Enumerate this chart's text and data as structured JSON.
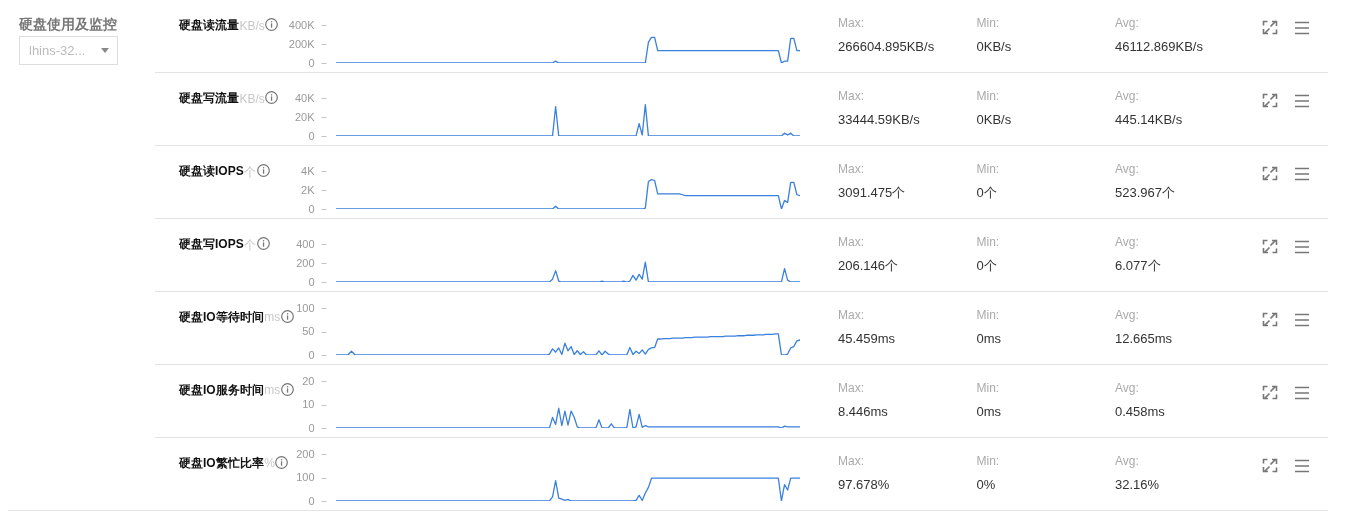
{
  "chart_data": [
    {
      "type": "other",
      "title": "硬盘使用及监控",
      "annotations": [
        "lhins-32..."
      ]
    },
    {
      "type": "line",
      "title": "硬盘读流量",
      "ylabel": "KB/s",
      "tick_labels": "y",
      "ylim": [
        0,
        400000
      ],
      "yticks": [
        0,
        {
          "value": 200000,
          "label": "200K"
        },
        {
          "value": 400000,
          "label": "400K"
        }
      ],
      "categories": [
        null,
        null,
        null,
        null,
        null,
        null,
        null,
        null,
        null,
        null,
        null,
        null,
        null,
        null,
        null,
        null,
        null,
        null,
        null,
        null,
        null,
        null,
        null,
        null,
        null,
        null,
        null,
        null,
        null,
        null,
        null,
        null,
        null,
        null,
        null,
        null,
        null,
        null,
        null,
        null,
        null,
        null,
        null,
        null,
        null,
        null,
        null,
        null,
        null,
        null,
        null,
        null,
        null,
        null,
        null,
        null,
        null,
        null,
        null,
        null,
        null,
        null,
        null,
        null,
        null,
        null,
        null,
        null,
        null,
        null,
        null,
        null,
        null,
        null,
        null,
        null,
        null,
        null,
        null,
        null,
        null,
        null,
        null,
        null,
        null,
        null,
        null,
        null,
        null,
        null,
        null,
        null,
        null,
        null,
        null,
        null,
        null,
        null,
        null,
        null,
        null,
        null,
        null,
        null,
        null,
        null,
        null,
        null,
        null,
        null,
        null,
        null,
        null,
        null,
        null,
        null,
        null,
        null,
        null,
        null,
        null,
        null,
        null,
        null,
        null,
        null,
        null,
        null,
        null,
        null,
        null,
        null,
        null,
        null,
        null,
        null,
        null,
        null,
        null,
        null,
        null,
        null,
        null,
        null,
        null,
        null,
        null,
        null,
        null,
        null,
        null
      ],
      "series": [
        {
          "color": "#3a80dd",
          "values": [
            0,
            0,
            0,
            0,
            0,
            0,
            0,
            0,
            0,
            0,
            0,
            0,
            0,
            0,
            0,
            0,
            0,
            0,
            0,
            0,
            0,
            0,
            0,
            0,
            0,
            0,
            0,
            0,
            0,
            0,
            0,
            0,
            0,
            0,
            0,
            0,
            0,
            0,
            0,
            0,
            0,
            0,
            0,
            0,
            0,
            0,
            0,
            0,
            0,
            0,
            0,
            0,
            0,
            0,
            0,
            0,
            0,
            0,
            0,
            0,
            0,
            0,
            0,
            0,
            0,
            0,
            0,
            0,
            0,
            0,
            0,
            20000,
            0,
            0,
            0,
            0,
            0,
            0,
            0,
            0,
            0,
            0,
            0,
            0,
            0,
            0,
            0,
            0,
            0,
            0,
            0,
            0,
            0,
            0,
            0,
            0,
            0,
            0,
            0,
            0,
            0,
            220000,
            270000,
            270000,
            130000,
            130000,
            130000,
            130000,
            130000,
            130000,
            130000,
            130000,
            130000,
            130000,
            130000,
            130000,
            130000,
            130000,
            130000,
            130000,
            130000,
            130000,
            130000,
            130000,
            130000,
            130000,
            130000,
            130000,
            130000,
            130000,
            130000,
            130000,
            130000,
            130000,
            130000,
            130000,
            130000,
            130000,
            130000,
            130000,
            130000,
            130000,
            130000,
            130000,
            0,
            20000,
            20000,
            260000,
            260000,
            130000,
            130000
          ]
        }
      ],
      "annotations": [
        "Max:",
        "266604.895KB/s",
        "Min:",
        "0KB/s",
        "Avg:",
        "46112.869KB/s"
      ]
    },
    {
      "type": "line",
      "title": "硬盘写流量",
      "ylabel": "KB/s",
      "tick_labels": "y",
      "ylim": [
        0,
        40000
      ],
      "yticks": [
        0,
        {
          "value": 20000,
          "label": "20K"
        },
        {
          "value": 40000,
          "label": "40K"
        }
      ],
      "categories": [
        null,
        null,
        null,
        null,
        null,
        null,
        null,
        null,
        null,
        null,
        null,
        null,
        null,
        null,
        null,
        null,
        null,
        null,
        null,
        null,
        null,
        null,
        null,
        null,
        null,
        null,
        null,
        null,
        null,
        null,
        null,
        null,
        null,
        null,
        null,
        null,
        null,
        null,
        null,
        null,
        null,
        null,
        null,
        null,
        null,
        null,
        null,
        null,
        null,
        null,
        null,
        null,
        null,
        null,
        null,
        null,
        null,
        null,
        null,
        null,
        null,
        null,
        null,
        null,
        null,
        null,
        null,
        null,
        null,
        null,
        null,
        null,
        null,
        null,
        null,
        null,
        null,
        null,
        null,
        null,
        null,
        null,
        null,
        null,
        null,
        null,
        null,
        null,
        null,
        null,
        null,
        null,
        null,
        null,
        null,
        null,
        null,
        null,
        null,
        null,
        null,
        null,
        null,
        null,
        null,
        null,
        null,
        null,
        null,
        null,
        null,
        null,
        null,
        null,
        null,
        null,
        null,
        null,
        null,
        null,
        null,
        null,
        null,
        null,
        null,
        null,
        null,
        null,
        null,
        null,
        null,
        null,
        null,
        null,
        null,
        null,
        null,
        null,
        null,
        null,
        null,
        null,
        null,
        null,
        null,
        null,
        null,
        null,
        null,
        null,
        null
      ],
      "series": [
        {
          "color": "#3a80dd",
          "values": [
            0,
            0,
            0,
            0,
            0,
            0,
            0,
            0,
            0,
            0,
            0,
            0,
            0,
            0,
            0,
            0,
            0,
            0,
            0,
            0,
            0,
            0,
            0,
            0,
            0,
            0,
            0,
            0,
            0,
            0,
            0,
            0,
            0,
            0,
            0,
            0,
            0,
            0,
            0,
            0,
            0,
            0,
            0,
            0,
            0,
            0,
            0,
            0,
            0,
            0,
            0,
            0,
            0,
            0,
            0,
            0,
            0,
            0,
            0,
            0,
            0,
            0,
            0,
            0,
            0,
            0,
            0,
            0,
            0,
            0,
            0,
            31000,
            0,
            0,
            0,
            0,
            0,
            0,
            0,
            0,
            0,
            0,
            0,
            0,
            0,
            0,
            0,
            0,
            0,
            0,
            0,
            0,
            0,
            0,
            0,
            0,
            0,
            0,
            13000,
            1000,
            33000,
            0,
            0,
            0,
            0,
            0,
            0,
            0,
            0,
            0,
            0,
            0,
            0,
            0,
            0,
            0,
            0,
            0,
            0,
            0,
            0,
            0,
            0,
            0,
            0,
            0,
            0,
            0,
            0,
            0,
            0,
            0,
            0,
            0,
            0,
            0,
            0,
            0,
            0,
            0,
            0,
            0,
            0,
            0,
            0,
            3000,
            1000,
            3000,
            0,
            0,
            0
          ]
        }
      ],
      "annotations": [
        "Max:",
        "33444.59KB/s",
        "Min:",
        "0KB/s",
        "Avg:",
        "445.14KB/s"
      ]
    },
    {
      "type": "line",
      "title": "硬盘读IOPS",
      "ylabel": "个",
      "tick_labels": "y",
      "ylim": [
        0,
        4000
      ],
      "yticks": [
        0,
        {
          "value": 2000,
          "label": "2K"
        },
        {
          "value": 4000,
          "label": "4K"
        }
      ],
      "categories": [
        null,
        null,
        null,
        null,
        null,
        null,
        null,
        null,
        null,
        null,
        null,
        null,
        null,
        null,
        null,
        null,
        null,
        null,
        null,
        null,
        null,
        null,
        null,
        null,
        null,
        null,
        null,
        null,
        null,
        null,
        null,
        null,
        null,
        null,
        null,
        null,
        null,
        null,
        null,
        null,
        null,
        null,
        null,
        null,
        null,
        null,
        null,
        null,
        null,
        null,
        null,
        null,
        null,
        null,
        null,
        null,
        null,
        null,
        null,
        null,
        null,
        null,
        null,
        null,
        null,
        null,
        null,
        null,
        null,
        null,
        null,
        null,
        null,
        null,
        null,
        null,
        null,
        null,
        null,
        null,
        null,
        null,
        null,
        null,
        null,
        null,
        null,
        null,
        null,
        null,
        null,
        null,
        null,
        null,
        null,
        null,
        null,
        null,
        null,
        null,
        null,
        null,
        null,
        null,
        null,
        null,
        null,
        null,
        null,
        null,
        null,
        null,
        null,
        null,
        null,
        null,
        null,
        null,
        null,
        null,
        null,
        null,
        null,
        null,
        null,
        null,
        null,
        null,
        null,
        null,
        null,
        null,
        null,
        null,
        null,
        null,
        null,
        null,
        null,
        null,
        null,
        null,
        null,
        null,
        null,
        null,
        null,
        null,
        null,
        null,
        null
      ],
      "series": [
        {
          "color": "#3a80dd",
          "values": [
            0,
            0,
            0,
            0,
            0,
            0,
            0,
            0,
            0,
            0,
            0,
            0,
            0,
            0,
            0,
            0,
            0,
            0,
            0,
            0,
            0,
            0,
            0,
            0,
            0,
            0,
            0,
            0,
            0,
            0,
            0,
            0,
            0,
            0,
            0,
            0,
            0,
            0,
            0,
            0,
            0,
            0,
            0,
            0,
            0,
            0,
            0,
            0,
            0,
            0,
            0,
            0,
            0,
            0,
            0,
            0,
            0,
            0,
            0,
            0,
            0,
            0,
            0,
            0,
            0,
            0,
            0,
            0,
            0,
            0,
            0,
            300,
            0,
            0,
            0,
            0,
            0,
            0,
            0,
            0,
            0,
            0,
            0,
            0,
            0,
            0,
            0,
            0,
            0,
            0,
            0,
            0,
            0,
            0,
            0,
            0,
            0,
            0,
            0,
            0,
            100,
            2900,
            3100,
            3000,
            1600,
            1600,
            1600,
            1600,
            1600,
            1600,
            1600,
            1600,
            1500,
            1400,
            1400,
            1400,
            1400,
            1400,
            1400,
            1400,
            1400,
            1400,
            1400,
            1400,
            1400,
            1400,
            1400,
            1400,
            1400,
            1400,
            1400,
            1400,
            1400,
            1400,
            1400,
            1400,
            1400,
            1400,
            1400,
            1400,
            1400,
            1400,
            1400,
            1400,
            0,
            900,
            700,
            2800,
            2800,
            1500,
            1400
          ]
        }
      ],
      "annotations": [
        "Max:",
        "3091.475个",
        "Min:",
        "0个",
        "Avg:",
        "523.967个"
      ]
    },
    {
      "type": "line",
      "title": "硬盘写IOPS",
      "ylabel": "个",
      "tick_labels": "y",
      "ylim": [
        0,
        400
      ],
      "yticks": [
        0,
        200,
        400
      ],
      "categories": [
        null,
        null,
        null,
        null,
        null,
        null,
        null,
        null,
        null,
        null,
        null,
        null,
        null,
        null,
        null,
        null,
        null,
        null,
        null,
        null,
        null,
        null,
        null,
        null,
        null,
        null,
        null,
        null,
        null,
        null,
        null,
        null,
        null,
        null,
        null,
        null,
        null,
        null,
        null,
        null,
        null,
        null,
        null,
        null,
        null,
        null,
        null,
        null,
        null,
        null,
        null,
        null,
        null,
        null,
        null,
        null,
        null,
        null,
        null,
        null,
        null,
        null,
        null,
        null,
        null,
        null,
        null,
        null,
        null,
        null,
        null,
        null,
        null,
        null,
        null,
        null,
        null,
        null,
        null,
        null,
        null,
        null,
        null,
        null,
        null,
        null,
        null,
        null,
        null,
        null,
        null,
        null,
        null,
        null,
        null,
        null,
        null,
        null,
        null,
        null,
        null,
        null,
        null,
        null,
        null,
        null,
        null,
        null,
        null,
        null,
        null,
        null,
        null,
        null,
        null,
        null,
        null,
        null,
        null,
        null,
        null,
        null,
        null,
        null,
        null,
        null,
        null,
        null,
        null,
        null,
        null,
        null,
        null,
        null,
        null,
        null,
        null,
        null,
        null,
        null,
        null,
        null,
        null,
        null,
        null,
        null,
        null,
        null,
        null,
        null,
        null
      ],
      "series": [
        {
          "color": "#3a80dd",
          "values": [
            0,
            0,
            0,
            0,
            0,
            0,
            0,
            0,
            0,
            0,
            0,
            0,
            0,
            0,
            0,
            0,
            0,
            0,
            0,
            0,
            0,
            0,
            0,
            0,
            0,
            0,
            0,
            0,
            0,
            0,
            0,
            0,
            0,
            0,
            0,
            0,
            0,
            0,
            0,
            0,
            0,
            0,
            0,
            0,
            0,
            0,
            0,
            0,
            0,
            0,
            0,
            0,
            0,
            0,
            0,
            0,
            0,
            0,
            0,
            0,
            0,
            0,
            0,
            0,
            0,
            0,
            0,
            0,
            0,
            0,
            30,
            120,
            10,
            0,
            0,
            0,
            0,
            0,
            0,
            0,
            0,
            0,
            0,
            0,
            0,
            0,
            10,
            0,
            0,
            0,
            0,
            0,
            0,
            10,
            0,
            10,
            70,
            20,
            80,
            30,
            210,
            0,
            0,
            0,
            0,
            0,
            0,
            0,
            0,
            0,
            0,
            0,
            0,
            0,
            0,
            0,
            0,
            0,
            0,
            0,
            0,
            0,
            0,
            0,
            0,
            0,
            0,
            0,
            0,
            0,
            0,
            0,
            0,
            0,
            0,
            0,
            0,
            0,
            0,
            0,
            0,
            0,
            0,
            0,
            0,
            140,
            20,
            0,
            0,
            0,
            0
          ]
        }
      ],
      "annotations": [
        "Max:",
        "206.146个",
        "Min:",
        "0个",
        "Avg:",
        "6.077个"
      ]
    },
    {
      "type": "line",
      "title": "硬盘IO等待时间",
      "ylabel": "ms",
      "tick_labels": "y",
      "ylim": [
        0,
        100
      ],
      "yticks": [
        0,
        50,
        100
      ],
      "categories": [
        null,
        null,
        null,
        null,
        null,
        null,
        null,
        null,
        null,
        null,
        null,
        null,
        null,
        null,
        null,
        null,
        null,
        null,
        null,
        null,
        null,
        null,
        null,
        null,
        null,
        null,
        null,
        null,
        null,
        null,
        null,
        null,
        null,
        null,
        null,
        null,
        null,
        null,
        null,
        null,
        null,
        null,
        null,
        null,
        null,
        null,
        null,
        null,
        null,
        null,
        null,
        null,
        null,
        null,
        null,
        null,
        null,
        null,
        null,
        null,
        null,
        null,
        null,
        null,
        null,
        null,
        null,
        null,
        null,
        null,
        null,
        null,
        null,
        null,
        null,
        null,
        null,
        null,
        null,
        null,
        null,
        null,
        null,
        null,
        null,
        null,
        null,
        null,
        null,
        null,
        null,
        null,
        null,
        null,
        null,
        null,
        null,
        null,
        null,
        null,
        null,
        null,
        null,
        null,
        null,
        null,
        null,
        null,
        null,
        null,
        null,
        null,
        null,
        null,
        null,
        null,
        null,
        null,
        null,
        null,
        null,
        null,
        null,
        null,
        null,
        null,
        null,
        null,
        null,
        null,
        null,
        null,
        null,
        null,
        null,
        null,
        null,
        null,
        null,
        null,
        null,
        null,
        null,
        null,
        null,
        null,
        null,
        null,
        null,
        null,
        null
      ],
      "series": [
        {
          "color": "#3a80dd",
          "values": [
            0,
            0,
            0,
            0,
            1,
            8,
            1,
            0,
            0,
            0,
            0,
            0,
            0,
            0,
            0,
            0,
            0,
            0,
            0,
            0,
            0,
            0,
            0,
            0,
            0,
            0,
            0,
            0,
            0,
            0,
            0,
            0,
            0,
            0,
            0,
            0,
            0,
            0,
            0,
            0,
            0,
            0,
            0,
            0,
            0,
            0,
            0,
            0,
            0,
            0,
            0,
            0,
            0,
            0,
            0,
            0,
            0,
            0,
            0,
            0,
            0,
            0,
            0,
            0,
            0,
            0,
            0,
            0,
            0,
            2,
            13,
            6,
            15,
            1,
            25,
            9,
            18,
            1,
            9,
            1,
            7,
            0,
            0,
            0,
            0,
            9,
            0,
            8,
            2,
            0,
            0,
            0,
            0,
            0,
            0,
            16,
            1,
            8,
            3,
            11,
            2,
            12,
            15,
            16,
            34,
            34,
            35,
            35,
            35,
            36,
            36,
            36,
            36,
            37,
            37,
            37,
            38,
            38,
            38,
            38,
            38,
            39,
            39,
            39,
            39,
            39,
            40,
            40,
            40,
            40,
            41,
            41,
            41,
            42,
            42,
            42,
            43,
            43,
            43,
            44,
            44,
            44,
            45,
            45,
            0,
            0,
            2,
            15,
            18,
            30,
            32
          ]
        }
      ],
      "annotations": [
        "Max:",
        "45.459ms",
        "Min:",
        "0ms",
        "Avg:",
        "12.665ms"
      ]
    },
    {
      "type": "line",
      "title": "硬盘IO服务时间",
      "ylabel": "ms",
      "tick_labels": "y",
      "ylim": [
        0,
        20
      ],
      "yticks": [
        0,
        10,
        20
      ],
      "categories": [
        null,
        null,
        null,
        null,
        null,
        null,
        null,
        null,
        null,
        null,
        null,
        null,
        null,
        null,
        null,
        null,
        null,
        null,
        null,
        null,
        null,
        null,
        null,
        null,
        null,
        null,
        null,
        null,
        null,
        null,
        null,
        null,
        null,
        null,
        null,
        null,
        null,
        null,
        null,
        null,
        null,
        null,
        null,
        null,
        null,
        null,
        null,
        null,
        null,
        null,
        null,
        null,
        null,
        null,
        null,
        null,
        null,
        null,
        null,
        null,
        null,
        null,
        null,
        null,
        null,
        null,
        null,
        null,
        null,
        null,
        null,
        null,
        null,
        null,
        null,
        null,
        null,
        null,
        null,
        null,
        null,
        null,
        null,
        null,
        null,
        null,
        null,
        null,
        null,
        null,
        null,
        null,
        null,
        null,
        null,
        null,
        null,
        null,
        null,
        null,
        null,
        null,
        null,
        null,
        null,
        null,
        null,
        null,
        null,
        null,
        null,
        null,
        null,
        null,
        null,
        null,
        null,
        null,
        null,
        null,
        null,
        null,
        null,
        null,
        null,
        null,
        null,
        null,
        null,
        null,
        null,
        null,
        null,
        null,
        null,
        null,
        null,
        null,
        null,
        null,
        null,
        null,
        null,
        null,
        null,
        null,
        null,
        null,
        null,
        null,
        null
      ],
      "series": [
        {
          "color": "#3a80dd",
          "values": [
            0,
            0,
            0,
            0,
            0,
            0,
            0,
            0,
            0,
            0,
            0,
            0,
            0,
            0,
            0,
            0,
            0,
            0,
            0,
            0,
            0,
            0,
            0,
            0,
            0,
            0,
            0,
            0,
            0,
            0,
            0,
            0,
            0,
            0,
            0,
            0,
            0,
            0,
            0,
            0,
            0,
            0,
            0,
            0,
            0,
            0,
            0,
            0,
            0,
            0,
            0,
            0,
            0,
            0,
            0,
            0,
            0,
            0,
            0,
            0,
            0,
            0,
            0,
            0,
            0,
            0,
            0,
            0,
            0,
            0,
            4.5,
            1.5,
            8.4,
            1,
            7.2,
            1.2,
            7.2,
            4.6,
            0.5,
            0,
            0,
            0,
            0,
            0,
            0,
            3.5,
            0,
            0,
            0,
            1.8,
            0,
            0,
            0,
            0,
            0,
            7.9,
            0,
            0.5,
            5.8,
            0.3,
            1,
            0.5,
            0.5,
            0.5,
            0.5,
            0.5,
            0.5,
            0.5,
            0.5,
            0.5,
            0.5,
            0.5,
            0.5,
            0.5,
            0.5,
            0.5,
            0.5,
            0.5,
            0.5,
            0.5,
            0.5,
            0.5,
            0.5,
            0.5,
            0.5,
            0.5,
            0.5,
            0.5,
            0.5,
            0.5,
            0.5,
            0.5,
            0.5,
            0.5,
            0.5,
            0.5,
            0.5,
            0.5,
            0.5,
            0.5,
            0.5,
            0.5,
            0.5,
            0.5,
            0,
            0.8,
            0.5,
            0.5,
            0.5,
            0.5,
            0.5
          ]
        }
      ],
      "annotations": [
        "Max:",
        "8.446ms",
        "Min:",
        "0ms",
        "Avg:",
        "0.458ms"
      ]
    },
    {
      "type": "line",
      "title": "硬盘IO繁忙比率",
      "ylabel": "%",
      "tick_labels": "y",
      "ylim": [
        0,
        200
      ],
      "yticks": [
        0,
        100,
        200
      ],
      "categories": [
        null,
        null,
        null,
        null,
        null,
        null,
        null,
        null,
        null,
        null,
        null,
        null,
        null,
        null,
        null,
        null,
        null,
        null,
        null,
        null,
        null,
        null,
        null,
        null,
        null,
        null,
        null,
        null,
        null,
        null,
        null,
        null,
        null,
        null,
        null,
        null,
        null,
        null,
        null,
        null,
        null,
        null,
        null,
        null,
        null,
        null,
        null,
        null,
        null,
        null,
        null,
        null,
        null,
        null,
        null,
        null,
        null,
        null,
        null,
        null,
        null,
        null,
        null,
        null,
        null,
        null,
        null,
        null,
        null,
        null,
        null,
        null,
        null,
        null,
        null,
        null,
        null,
        null,
        null,
        null,
        null,
        null,
        null,
        null,
        null,
        null,
        null,
        null,
        null,
        null,
        null,
        null,
        null,
        null,
        null,
        null,
        null,
        null,
        null,
        null,
        null,
        null,
        null,
        null,
        null,
        null,
        null,
        null,
        null,
        null,
        null,
        null,
        null,
        null,
        null,
        null,
        null,
        null,
        null,
        null,
        null,
        null,
        null,
        null,
        null,
        null,
        null,
        null,
        null,
        null,
        null,
        null,
        null,
        null,
        null,
        null,
        null,
        null,
        null,
        null,
        null,
        null,
        null,
        null,
        null,
        null,
        null,
        null,
        null,
        null,
        null
      ],
      "series": [
        {
          "color": "#3a80dd",
          "values": [
            0,
            0,
            0,
            0,
            0,
            0,
            0,
            0,
            0,
            0,
            0,
            0,
            0,
            0,
            0,
            0,
            0,
            0,
            0,
            0,
            0,
            0,
            0,
            0,
            0,
            0,
            0,
            0,
            0,
            0,
            0,
            0,
            0,
            0,
            0,
            0,
            0,
            0,
            0,
            0,
            0,
            0,
            0,
            0,
            0,
            0,
            0,
            0,
            0,
            0,
            0,
            0,
            0,
            0,
            0,
            0,
            0,
            0,
            0,
            0,
            0,
            0,
            0,
            0,
            0,
            0,
            0,
            0,
            0,
            0,
            18,
            87,
            12,
            8,
            3,
            7,
            0,
            0,
            0,
            0,
            0,
            0,
            0,
            0,
            0,
            0,
            0,
            0,
            0,
            0,
            0,
            0,
            0,
            0,
            0,
            0,
            0,
            3,
            24,
            2,
            34,
            58,
            97,
            97,
            97,
            97,
            97,
            97,
            97,
            97,
            97,
            97,
            97,
            97,
            97,
            97,
            97,
            97,
            97,
            97,
            97,
            97,
            97,
            97,
            97,
            97,
            97,
            97,
            97,
            97,
            97,
            97,
            97,
            97,
            97,
            97,
            97,
            97,
            97,
            97,
            97,
            97,
            97,
            97,
            0,
            70,
            47,
            97,
            97,
            97,
            97
          ]
        }
      ],
      "annotations": [
        "Max:",
        "97.678%",
        "Min:",
        "0%",
        "Avg:",
        "32.16%"
      ]
    }
  ]
}
